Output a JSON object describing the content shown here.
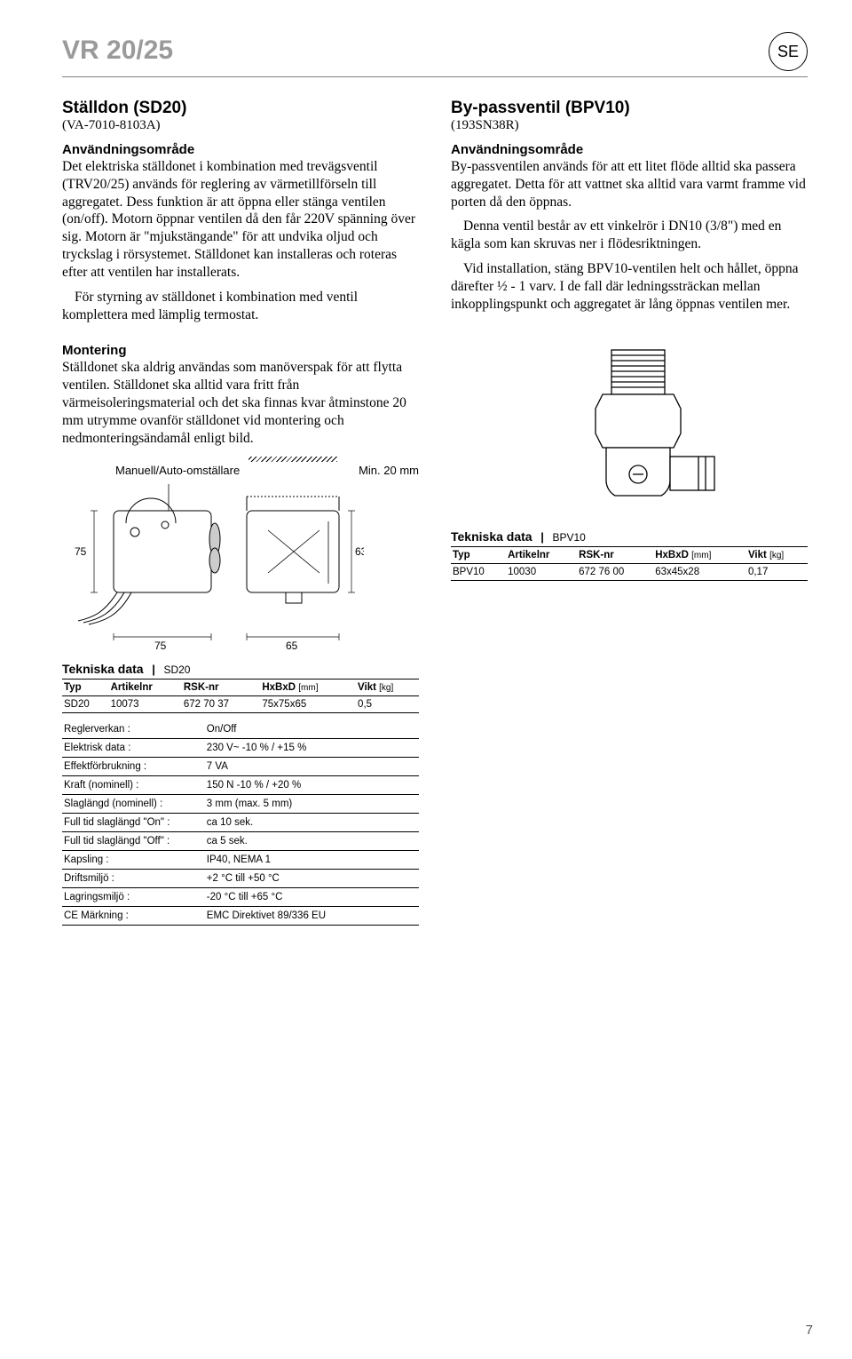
{
  "header": {
    "product_code": "VR 20/25",
    "lang": "SE"
  },
  "left": {
    "title": "Ställdon (SD20)",
    "code": "(VA-7010-8103A)",
    "sec1_title": "Användningsområde",
    "p1": "Det elektriska ställdonet i kombination med trevägsventil (TRV20/25) används för reglering av värmetillförseln till aggregatet. Dess funktion är att öppna eller stänga ventilen (on/off). Motorn öppnar ventilen då den får 220V spänning över sig. Motorn är \"mjukstängande\" för att undvika oljud och tryckslag i rörsystemet. Ställdonet kan installeras och roteras efter att ventilen har installerats.",
    "p2": "För styrning av ställdonet i kombination med ventil komplettera med lämplig termostat.",
    "montering_title": "Montering",
    "montering_text": "Ställdonet ska aldrig användas som manöverspak för att flytta ventilen. Ställdonet ska alltid vara fritt från värmeisoleringsmaterial och det ska finnas kvar åtminstone 20 mm utrymme ovanför ställdonet vid montering och nedmonteringsändamål enligt bild.",
    "diag_label_left": "Manuell/Auto-omställare",
    "diag_label_right": "Min. 20 mm",
    "dim_left_h": "75",
    "dim_right_h": "63",
    "dim_left_w": "75",
    "dim_right_w": "65",
    "tek_title": "Tekniska data",
    "tek_model": "SD20",
    "table": {
      "cols": [
        "Typ",
        "Artikelnr",
        "RSK-nr",
        "HxBxD",
        "Vikt"
      ],
      "units": [
        "",
        "",
        "",
        "[mm]",
        "[kg]"
      ],
      "row": [
        "SD20",
        "10073",
        "672 70 37",
        "75x75x65",
        "0,5"
      ]
    },
    "spec": [
      [
        "Reglerverkan :",
        "On/Off"
      ],
      [
        "Elektrisk data :",
        "230 V~   -10 % / +15 %"
      ],
      [
        "Effektförbrukning :",
        "7 VA"
      ],
      [
        "Kraft (nominell) :",
        "150 N   -10 % / +20 %"
      ],
      [
        "Slaglängd (nominell) :",
        "3 mm (max. 5 mm)"
      ],
      [
        "Full tid slaglängd \"On\" :",
        "ca 10 sek."
      ],
      [
        "Full tid slaglängd \"Off\" :",
        "ca 5 sek."
      ],
      [
        "Kapsling :",
        "IP40, NEMA 1"
      ],
      [
        "Driftsmiljö :",
        "+2 °C till +50 °C"
      ],
      [
        "Lagringsmiljö :",
        "-20 °C till +65 °C"
      ],
      [
        "CE Märkning :",
        "EMC Direktivet 89/336 EU"
      ]
    ]
  },
  "right": {
    "title": "By-passventil (BPV10)",
    "code": "(193SN38R)",
    "sec1_title": "Användningsområde",
    "p1": "By-passventilen används för att ett litet flöde alltid ska passera aggregatet. Detta för att vattnet ska alltid vara varmt framme vid porten då den öppnas.",
    "p2": "Denna ventil består av ett vinkelrör i DN10 (3/8\") med en kägla som kan skruvas ner i flödesriktningen.",
    "p3": "Vid installation, stäng BPV10-ventilen helt och hållet, öppna därefter ½ - 1 varv. I de fall där ledningssträckan mellan inkopplingspunkt och aggregatet är lång öppnas ventilen mer.",
    "tek_title": "Tekniska data",
    "tek_model": "BPV10",
    "table": {
      "cols": [
        "Typ",
        "Artikelnr",
        "RSK-nr",
        "HxBxD",
        "Vikt"
      ],
      "units": [
        "",
        "",
        "",
        "[mm]",
        "[kg]"
      ],
      "row": [
        "BPV10",
        "10030",
        "672 76 00",
        "63x45x28",
        "0,17"
      ]
    }
  },
  "page_number": "7"
}
